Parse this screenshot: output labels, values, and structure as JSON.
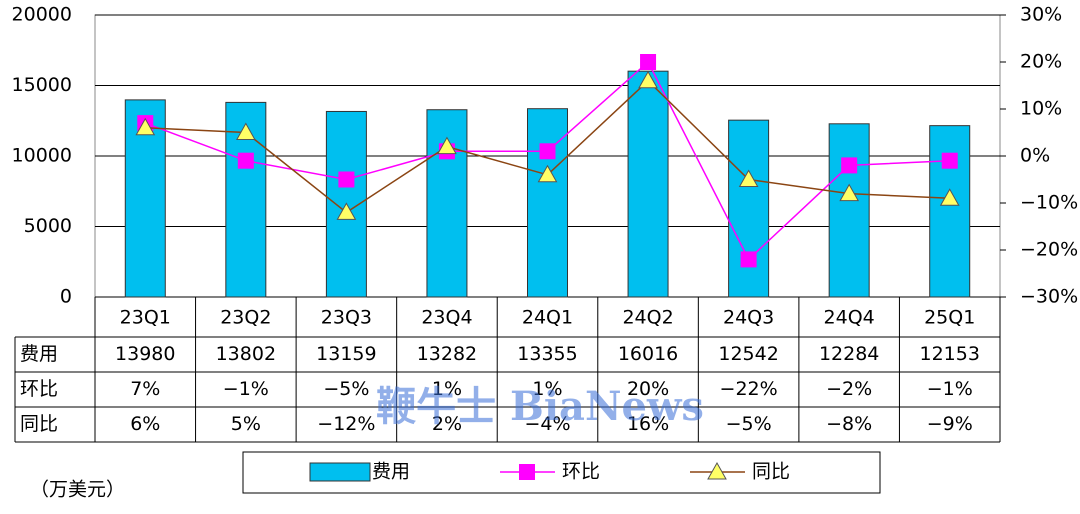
{
  "chart_data": {
    "type": "bar",
    "categories": [
      "23Q1",
      "23Q2",
      "23Q3",
      "23Q4",
      "24Q1",
      "24Q2",
      "24Q3",
      "24Q4",
      "25Q1"
    ],
    "series": [
      {
        "name": "费用",
        "type": "bar",
        "color": "#00bfef",
        "values": [
          13980,
          13802,
          13159,
          13282,
          13355,
          16016,
          12542,
          12284,
          12153
        ]
      },
      {
        "name": "环比",
        "type": "line",
        "axis": "y2",
        "color": "#ff00ff",
        "values": [
          7,
          -1,
          -5,
          1,
          1,
          20,
          -22,
          -2,
          -1
        ],
        "value_labels": [
          "7%",
          "−1%",
          "−5%",
          "1%",
          "1%",
          "20%",
          "−22%",
          "−2%",
          "−1%"
        ]
      },
      {
        "name": "同比",
        "type": "line",
        "axis": "y2",
        "color": "#8b4513",
        "marker_color": "#ffff66",
        "values": [
          6,
          5,
          -12,
          2,
          -4,
          16,
          -5,
          -8,
          -9
        ],
        "value_labels": [
          "6%",
          "5%",
          "−12%",
          "2%",
          "−4%",
          "16%",
          "−5%",
          "−8%",
          "−9%"
        ]
      }
    ],
    "ylim": [
      0,
      20000
    ],
    "yticks": [
      0,
      5000,
      10000,
      15000,
      20000
    ],
    "y2lim": [
      -30,
      30
    ],
    "y2ticks": [
      {
        "value": -30,
        "label": "−30%"
      },
      {
        "value": -20,
        "label": "−20%"
      },
      {
        "value": -10,
        "label": "−10%"
      },
      {
        "value": 0,
        "label": "0%"
      },
      {
        "value": 10,
        "label": "10%"
      },
      {
        "value": 20,
        "label": "20%"
      },
      {
        "value": 30,
        "label": "30%"
      }
    ],
    "grid": true,
    "unit_label": "（万美元）",
    "watermark": "鞭牛士 BiaNews"
  }
}
